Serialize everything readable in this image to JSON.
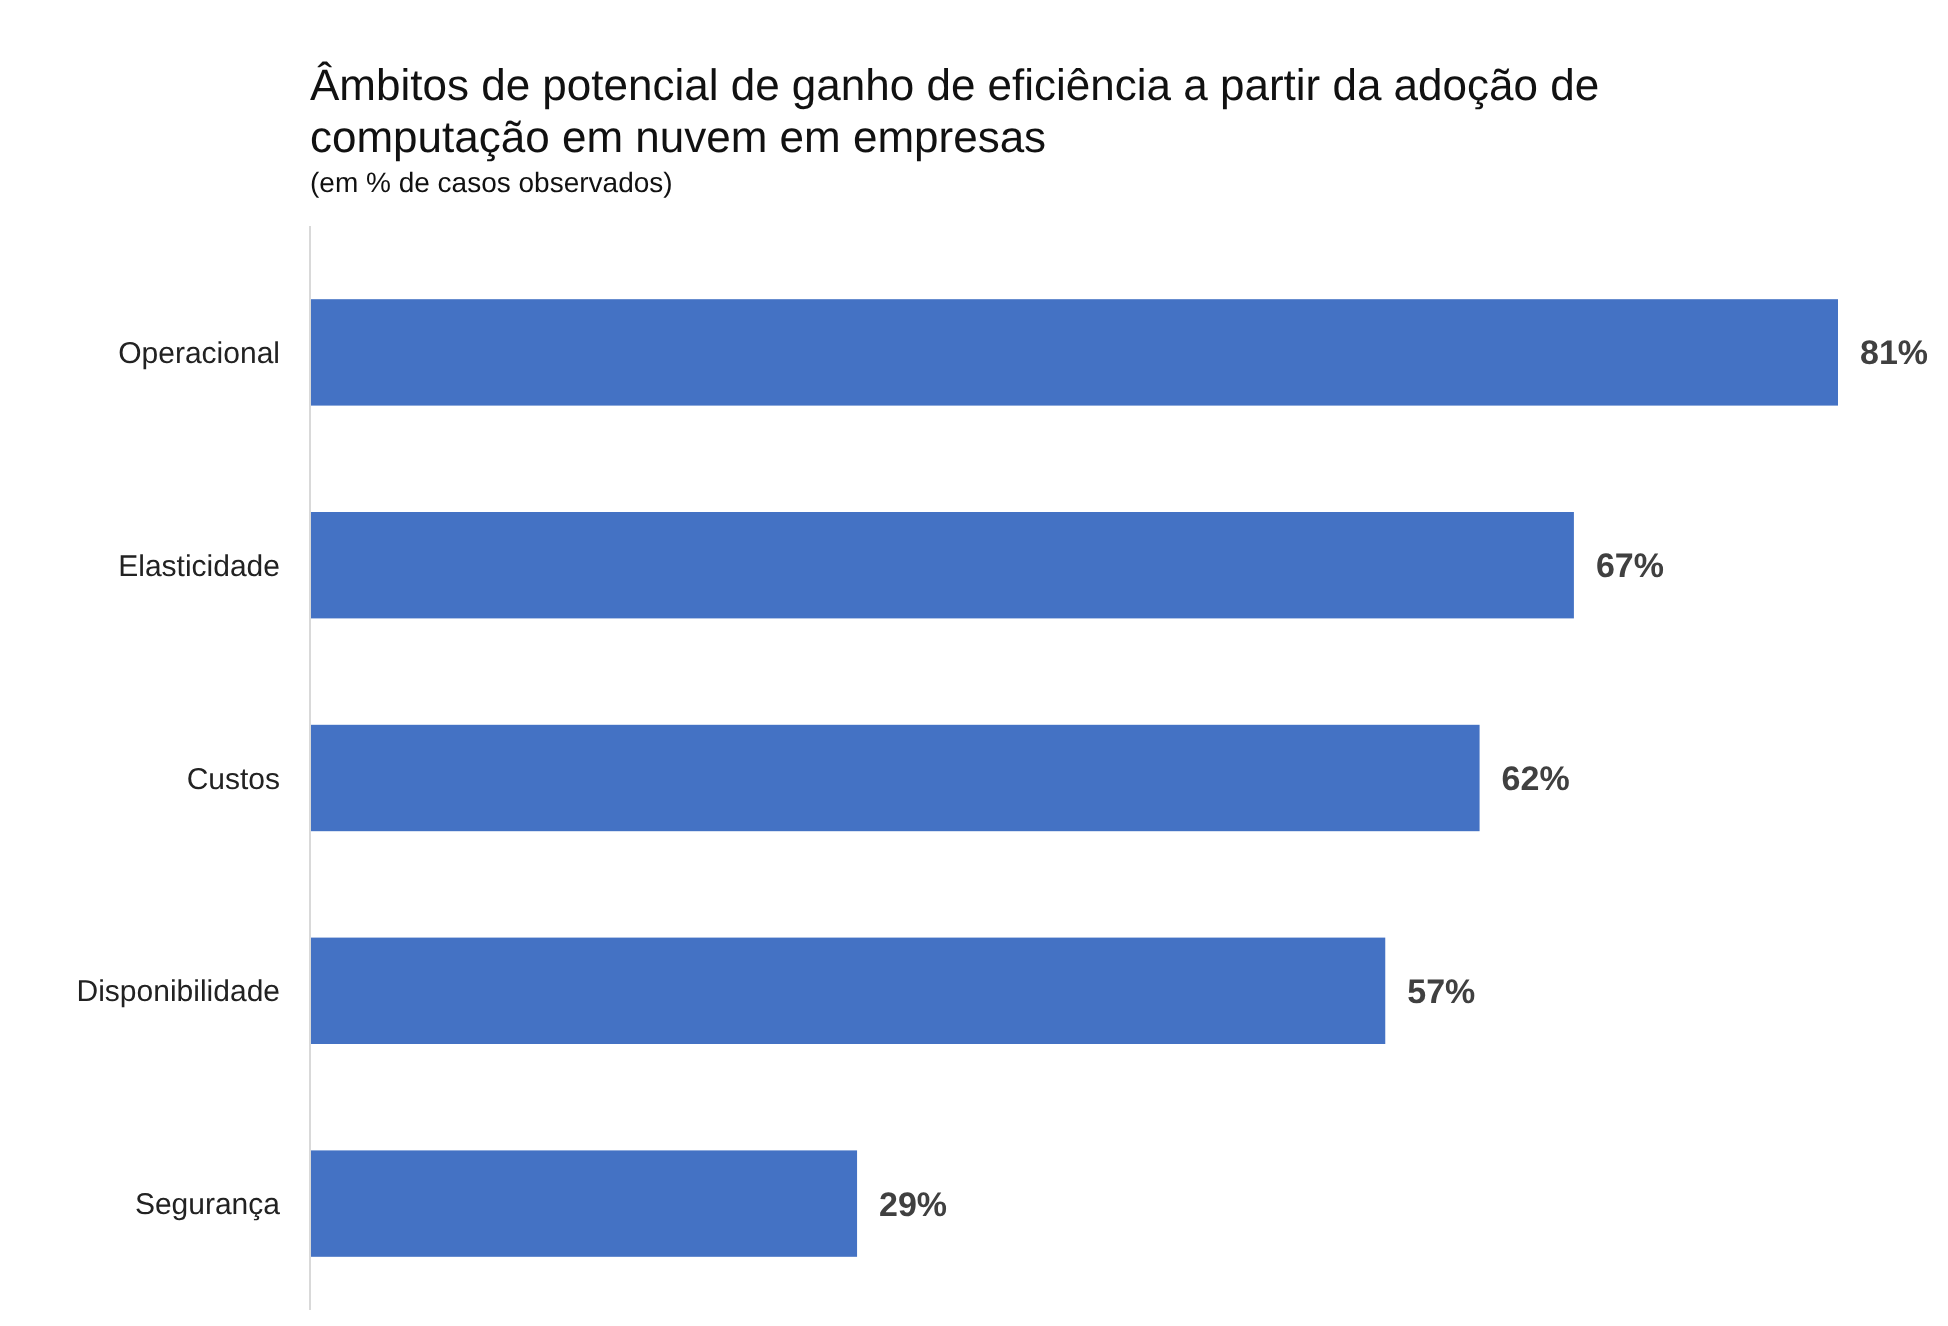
{
  "chart_data": {
    "type": "bar",
    "orientation": "horizontal",
    "title": "Âmbitos de potencial de ganho de eficiência a partir da adoção de computação em nuvem em empresas",
    "subtitle": "(em % de casos observados)",
    "categories": [
      "Operacional",
      "Elasticidade",
      "Custos",
      "Disponibilidade",
      "Segurança"
    ],
    "values": [
      81,
      67,
      62,
      57,
      29
    ],
    "value_labels": [
      "81%",
      "67%",
      "62%",
      "57%",
      "29%"
    ],
    "color": "#4472c4"
  }
}
